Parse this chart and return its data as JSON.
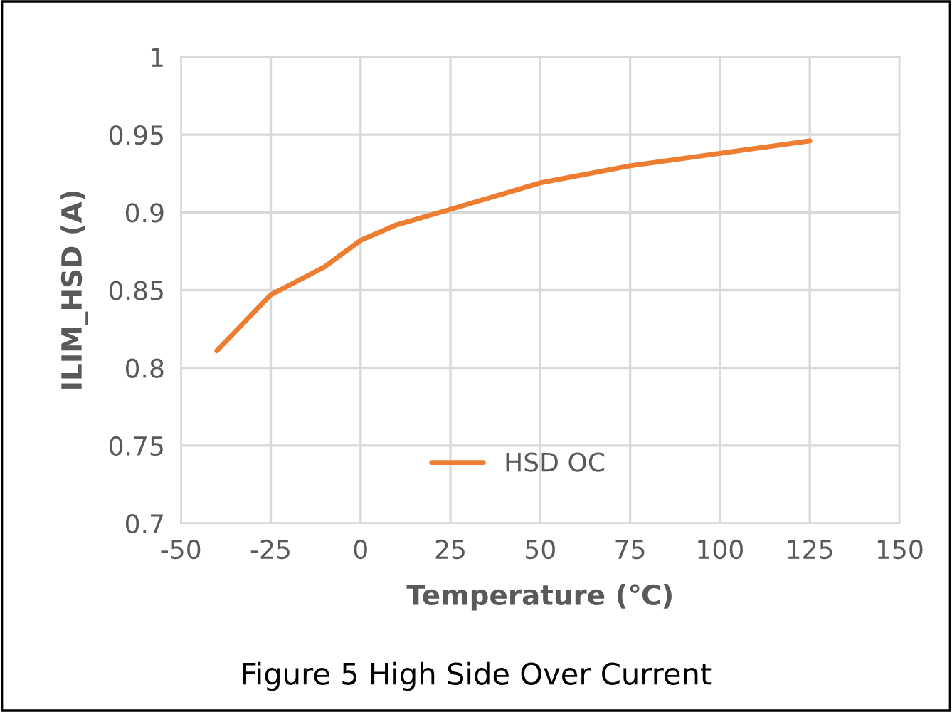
{
  "chart_data": {
    "type": "line",
    "title": "Figure 5 High Side Over Current",
    "xlabel": "Temperature (℃)",
    "ylabel": "ILIM_HSD (A)",
    "x": [
      -40,
      -25,
      -10,
      0,
      10,
      25,
      50,
      75,
      100,
      125
    ],
    "series": [
      {
        "name": "HSD OC",
        "color": "#ed7d31",
        "values": [
          0.811,
          0.847,
          0.865,
          0.882,
          0.892,
          0.902,
          0.919,
          0.93,
          0.938,
          0.946
        ]
      }
    ],
    "xlim": [
      -50,
      150
    ],
    "xticks": [
      -50,
      -25,
      0,
      25,
      50,
      75,
      100,
      125,
      150
    ],
    "ylim": [
      0.7,
      1
    ],
    "yticks": [
      0.7,
      0.75,
      0.8,
      0.85,
      0.9,
      0.95,
      1
    ],
    "grid": true,
    "legend": "bottom",
    "marker": "none",
    "line_style": "solid"
  }
}
